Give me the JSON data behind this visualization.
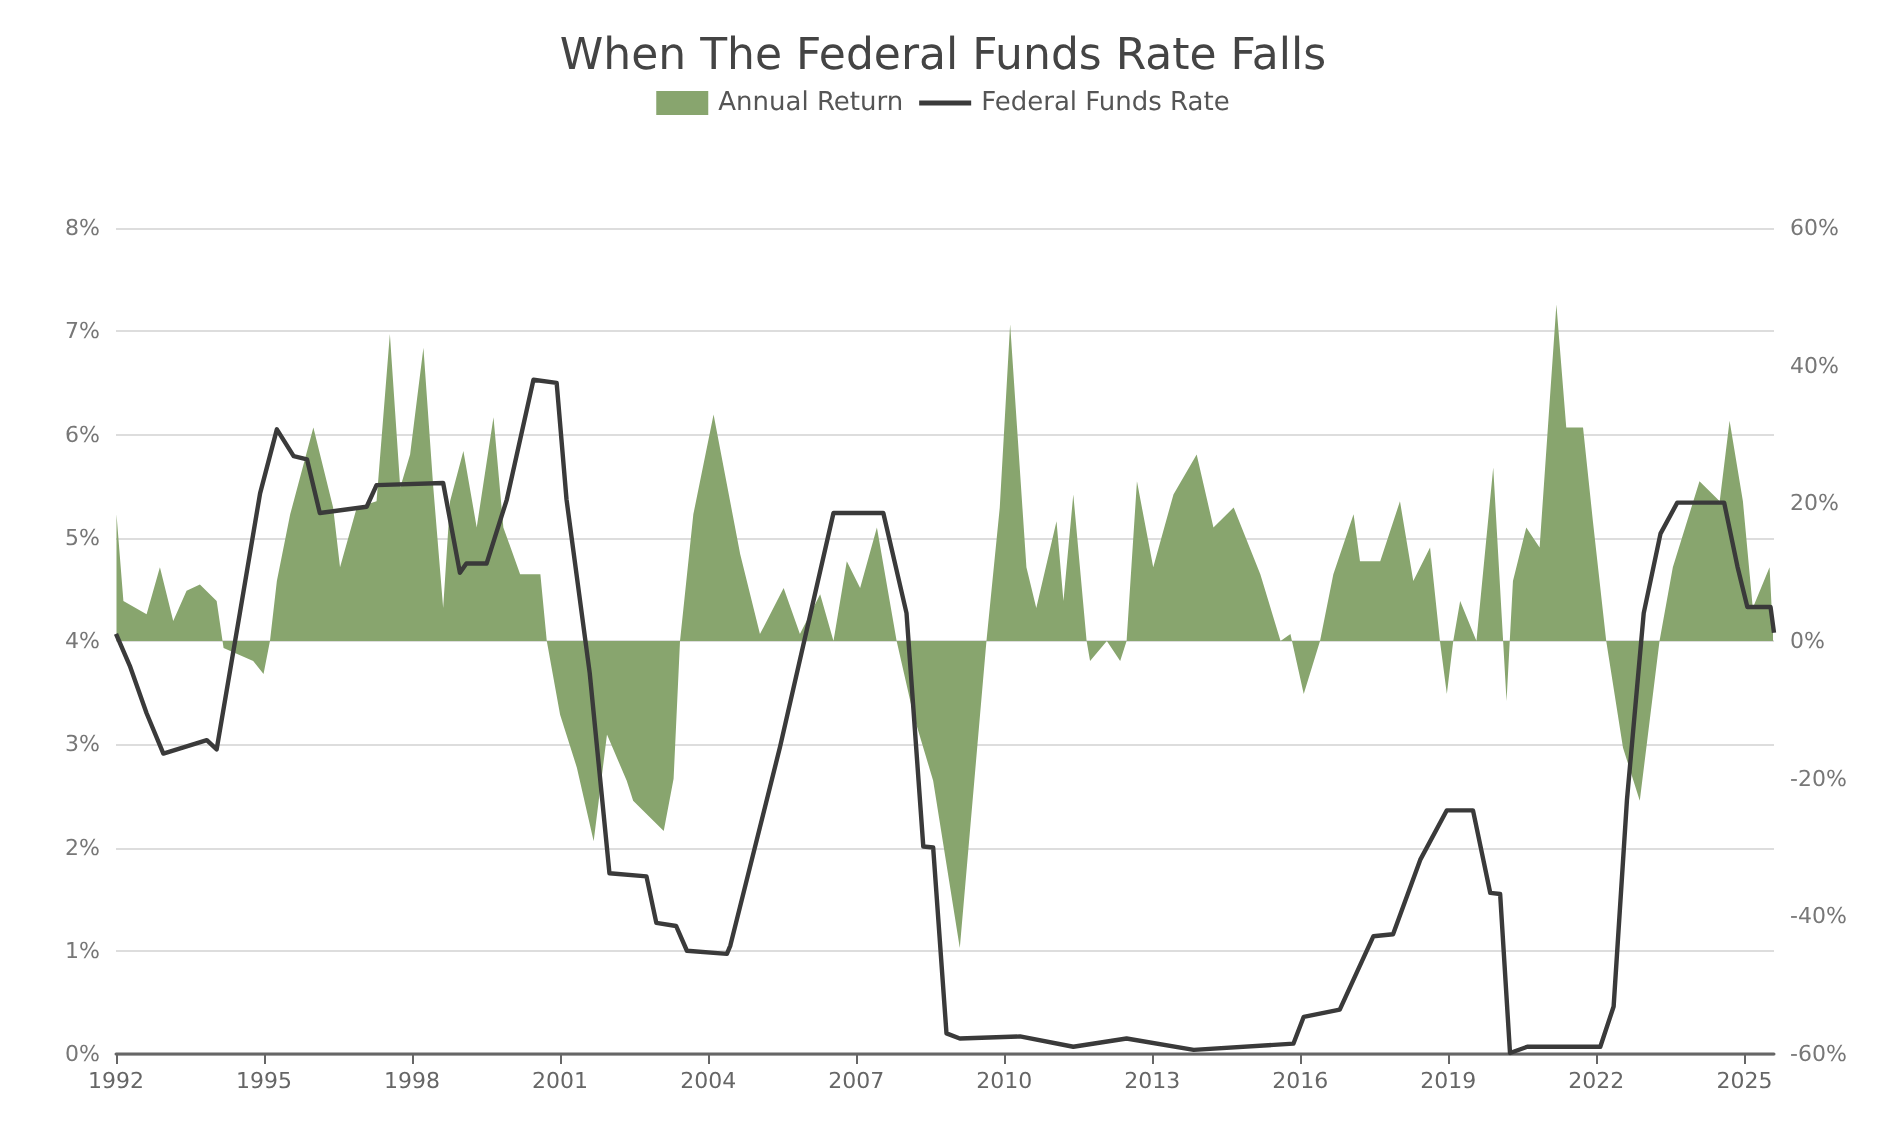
{
  "chart_data": {
    "type": "line",
    "title": "When The Federal Funds Rate Falls",
    "legend": "top",
    "grid": "y",
    "marker": "none",
    "xlim": [
      1992,
      2025.6
    ],
    "xticks": [
      1992,
      1995,
      1998,
      2001,
      2004,
      2007,
      2010,
      2013,
      2016,
      2019,
      2022,
      2025
    ],
    "ylim": [
      0,
      8
    ],
    "yticks": [
      {
        "value": 0,
        "label": "0%"
      },
      {
        "value": 1,
        "label": "1%"
      },
      {
        "value": 2,
        "label": "2%"
      },
      {
        "value": 3,
        "label": "3%"
      },
      {
        "value": 4,
        "label": "4%"
      },
      {
        "value": 5,
        "label": "5%"
      },
      {
        "value": 6,
        "label": "6%"
      },
      {
        "value": 7,
        "label": "7%"
      },
      {
        "value": 8,
        "label": "8%"
      }
    ],
    "y2lim": [
      -60,
      60
    ],
    "y2ticks": [
      {
        "value": -60,
        "label": "-60%"
      },
      {
        "value": -40,
        "label": "-40%"
      },
      {
        "value": -20,
        "label": "-20%"
      },
      {
        "value": 0,
        "label": "0%"
      },
      {
        "value": 20,
        "label": "20%"
      },
      {
        "value": 40,
        "label": "40%"
      },
      {
        "value": 60,
        "label": "60%"
      }
    ],
    "series": [
      {
        "name": "Annual Return",
        "type": "area",
        "axis": "y2",
        "color": "#88a56e",
        "x": [
          1992.01,
          1992.15,
          1992.62,
          1992.89,
          1993.16,
          1993.43,
          1993.7,
          1994.04,
          1994.18,
          1994.78,
          1994.99,
          1995.12,
          1995.26,
          1995.53,
          1996.0,
          1996.4,
          1996.54,
          1996.88,
          1997.28,
          1997.55,
          1997.76,
          1997.96,
          1998.23,
          1998.43,
          1998.63,
          1998.77,
          1999.04,
          1999.31,
          1999.65,
          1999.85,
          2000.19,
          2000.6,
          2000.73,
          2001.0,
          2001.34,
          2001.68,
          2001.95,
          2002.35,
          2002.48,
          2003.1,
          2003.3,
          2003.43,
          2003.7,
          2004.11,
          2004.65,
          2005.05,
          2005.53,
          2005.86,
          2006.27,
          2006.54,
          2006.81,
          2007.08,
          2007.42,
          2007.82,
          2008.16,
          2008.56,
          2009.1,
          2009.64,
          2009.91,
          2010.12,
          2010.45,
          2010.65,
          2011.06,
          2011.2,
          2011.4,
          2011.67,
          2011.74,
          2012.08,
          2012.35,
          2012.48,
          2012.69,
          2013.02,
          2013.43,
          2013.9,
          2014.24,
          2014.65,
          2015.19,
          2015.6,
          2015.8,
          2016.07,
          2016.4,
          2016.67,
          2017.08,
          2017.21,
          2017.62,
          2018.02,
          2018.29,
          2018.63,
          2018.83,
          2018.97,
          2019.1,
          2019.24,
          2019.57,
          2019.91,
          2020.18,
          2020.31,
          2020.58,
          2020.85,
          2021.19,
          2021.39,
          2021.73,
          2021.93,
          2022.2,
          2022.54,
          2022.88,
          2023.28,
          2023.55,
          2024.09,
          2024.5,
          2024.7,
          2024.97,
          2025.17,
          2025.51,
          2025.58
        ],
        "values": [
          18.4,
          5.8,
          3.9,
          10.7,
          2.9,
          7.3,
          8.2,
          5.8,
          -1.0,
          -2.9,
          -4.8,
          0,
          8.7,
          18.4,
          31.0,
          19.4,
          10.7,
          19.4,
          20.3,
          44.6,
          22.3,
          27.1,
          42.6,
          22.3,
          4.8,
          20.3,
          27.6,
          16.5,
          32.5,
          16.5,
          9.7,
          9.7,
          0,
          -10.7,
          -18.4,
          -29.1,
          -13.6,
          -20.3,
          -23.2,
          -27.6,
          -20,
          0,
          18.4,
          32.9,
          12.6,
          1.0,
          7.7,
          1.0,
          6.8,
          0,
          11.6,
          7.7,
          16.5,
          0,
          -10.7,
          -20.3,
          -44.6,
          0,
          19.4,
          46.0,
          10.7,
          4.8,
          17.4,
          5.8,
          21.3,
          0,
          -2.9,
          0,
          -2.9,
          0,
          23.2,
          10.7,
          21.3,
          27.1,
          16.5,
          19.4,
          9.7,
          0,
          1.0,
          -7.7,
          0,
          9.7,
          18.4,
          11.6,
          11.6,
          20.3,
          8.7,
          13.6,
          0,
          -7.7,
          0,
          5.8,
          0,
          25.2,
          -8.7,
          8.7,
          16.5,
          13.6,
          48.9,
          31.0,
          31.0,
          17.4,
          0,
          -15.5,
          -23.2,
          0,
          10.7,
          23.2,
          20.3,
          32.0,
          20.3,
          4.8,
          10.7,
          1.0
        ]
      },
      {
        "name": "Federal Funds Rate",
        "color": "#3a3a3a",
        "x": [
          1992.0,
          1992.28,
          1992.62,
          1992.96,
          1993.84,
          1994.04,
          1994.51,
          1994.92,
          1995.26,
          1995.6,
          1995.87,
          1996.13,
          1997.08,
          1997.28,
          1998.63,
          1998.97,
          1999.1,
          1999.51,
          1999.92,
          2000.46,
          2000.93,
          2001.13,
          2001.6,
          2002.0,
          2002.75,
          2002.95,
          2003.35,
          2003.57,
          2004.38,
          2004.45,
          2005.46,
          2006.54,
          2007.55,
          2008.02,
          2008.36,
          2008.56,
          2008.83,
          2009.1,
          2010.32,
          2011.4,
          2012.48,
          2013.84,
          2015.86,
          2016.07,
          2016.8,
          2017.48,
          2017.88,
          2018.43,
          2018.97,
          2019.5,
          2019.85,
          2020.05,
          2020.25,
          2020.6,
          2022.08,
          2022.35,
          2022.62,
          2022.96,
          2023.3,
          2023.64,
          2024.59,
          2024.86,
          2025.06,
          2025.53,
          2025.6
        ],
        "values": [
          4.07,
          3.76,
          3.3,
          2.91,
          3.04,
          2.95,
          4.27,
          5.43,
          6.05,
          5.79,
          5.76,
          5.24,
          5.3,
          5.51,
          5.53,
          4.66,
          4.75,
          4.75,
          5.37,
          6.53,
          6.5,
          5.37,
          3.69,
          1.75,
          1.72,
          1.27,
          1.24,
          1.0,
          0.97,
          1.05,
          2.98,
          5.24,
          5.24,
          4.27,
          2.01,
          2.0,
          0.2,
          0.15,
          0.17,
          0.07,
          0.15,
          0.04,
          0.1,
          0.36,
          0.43,
          1.14,
          1.16,
          1.88,
          2.36,
          2.36,
          1.56,
          1.55,
          0.01,
          0.07,
          0.07,
          0.46,
          2.46,
          4.27,
          5.04,
          5.34,
          5.34,
          4.72,
          4.33,
          4.33,
          4.08
        ]
      }
    ]
  }
}
